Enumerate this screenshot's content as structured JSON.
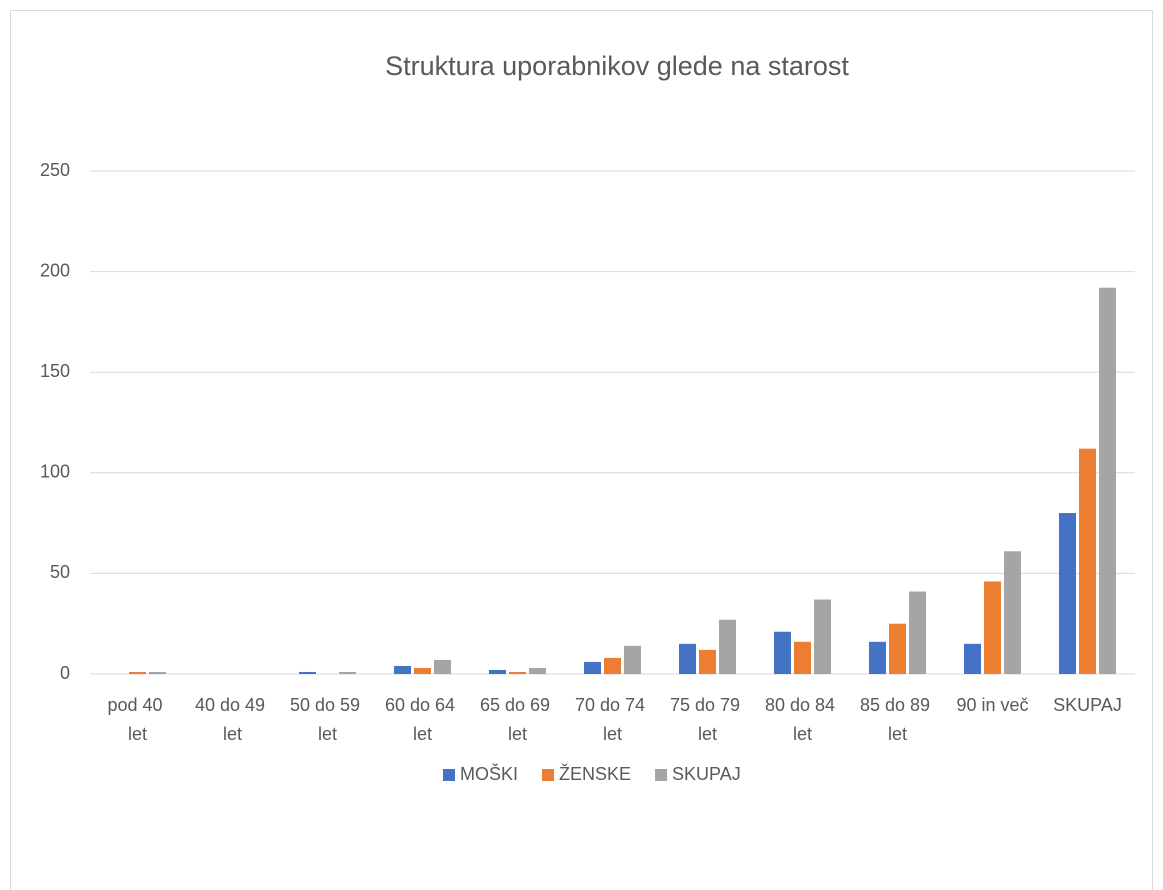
{
  "chart_data": {
    "type": "bar",
    "title": "Struktura uporabnikov glede na starost",
    "categories": [
      "pod 40 let",
      "40 do 49 let",
      "50 do 59 let",
      "60 do 64 let",
      "65 do 69 let",
      "70 do 74 let",
      "75 do 79 let",
      "80 do 84 let",
      "85 do 89 let",
      "90 in več",
      "SKUPAJ"
    ],
    "series": [
      {
        "name": "MOŠKI",
        "color": "#4472c4",
        "values": [
          0,
          0,
          1,
          4,
          2,
          6,
          15,
          21,
          16,
          15,
          80
        ]
      },
      {
        "name": "ŽENSKE",
        "color": "#ed7d31",
        "values": [
          1,
          0,
          0,
          3,
          1,
          8,
          12,
          16,
          25,
          46,
          112
        ]
      },
      {
        "name": "SKUPAJ",
        "color": "#a5a5a5",
        "values": [
          1,
          0,
          1,
          7,
          3,
          14,
          27,
          37,
          41,
          61,
          192
        ]
      }
    ],
    "ylim": [
      0,
      250
    ],
    "yticks": [
      0,
      50,
      100,
      150,
      200,
      250
    ],
    "grid": true,
    "legend": "bottom"
  }
}
